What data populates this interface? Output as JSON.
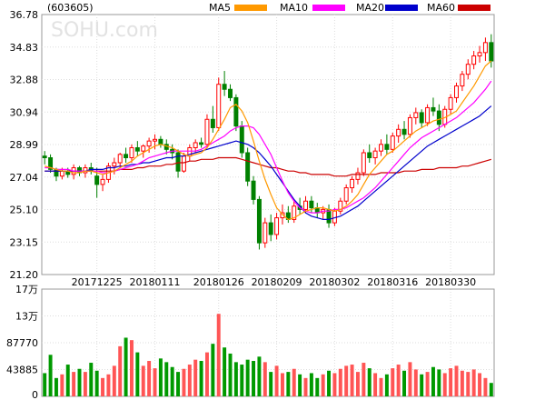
{
  "header": {
    "stock_code": "(603605)",
    "watermark": "SOHU.com",
    "legend": [
      {
        "label": "MA5",
        "color": "#FF9900"
      },
      {
        "label": "MA10",
        "color": "#FF00FF"
      },
      {
        "label": "MA20",
        "color": "#0000CC"
      },
      {
        "label": "MA60",
        "color": "#CC0000"
      }
    ]
  },
  "chart_data": [
    {
      "type": "candlestick",
      "y_ticks": [
        "36.78",
        "34.83",
        "32.88",
        "30.94",
        "28.99",
        "27.04",
        "25.10",
        "23.15",
        "21.20"
      ],
      "ylim": [
        21.2,
        36.78
      ],
      "x_tick_labels": [
        "20171225",
        "20180111",
        "20180126",
        "20180209",
        "20180302",
        "20180316",
        "20180330"
      ],
      "x_tick_index": [
        9,
        19,
        30,
        40,
        50,
        60,
        70
      ],
      "up_color": "#FF0000",
      "down_color": "#008000",
      "candles": [
        [
          28.3,
          28.6,
          27.8,
          28.2
        ],
        [
          28.2,
          28.4,
          27.3,
          27.5
        ],
        [
          27.5,
          27.6,
          26.8,
          27.1
        ],
        [
          27.1,
          27.6,
          26.9,
          27.4
        ],
        [
          27.4,
          27.6,
          27.0,
          27.2
        ],
        [
          27.2,
          27.8,
          26.9,
          27.6
        ],
        [
          27.6,
          27.7,
          27.1,
          27.3
        ],
        [
          27.3,
          27.8,
          27.0,
          27.6
        ],
        [
          27.6,
          27.9,
          27.2,
          27.4
        ],
        [
          27.1,
          27.6,
          25.8,
          26.6
        ],
        [
          26.6,
          27.2,
          26.2,
          26.9
        ],
        [
          26.9,
          27.9,
          26.7,
          27.7
        ],
        [
          27.7,
          28.2,
          27.2,
          27.9
        ],
        [
          27.9,
          28.5,
          27.6,
          28.4
        ],
        [
          28.4,
          28.8,
          27.9,
          28.2
        ],
        [
          28.2,
          29.0,
          27.9,
          28.8
        ],
        [
          28.8,
          29.2,
          28.3,
          28.6
        ],
        [
          28.6,
          29.0,
          28.2,
          28.9
        ],
        [
          28.9,
          29.4,
          28.5,
          29.2
        ],
        [
          29.2,
          29.6,
          28.7,
          29.3
        ],
        [
          29.3,
          29.5,
          28.8,
          29.0
        ],
        [
          29.0,
          29.3,
          28.4,
          28.7
        ],
        [
          28.7,
          29.0,
          28.1,
          28.5
        ],
        [
          28.5,
          28.7,
          27.0,
          27.4
        ],
        [
          27.4,
          28.5,
          27.3,
          28.3
        ],
        [
          28.3,
          29.0,
          28.0,
          28.8
        ],
        [
          28.8,
          29.3,
          28.5,
          29.1
        ],
        [
          29.1,
          29.4,
          28.8,
          29.0
        ],
        [
          29.0,
          30.8,
          28.8,
          30.5
        ],
        [
          30.5,
          31.3,
          29.7,
          30.0
        ],
        [
          30.0,
          33.0,
          29.8,
          32.6
        ],
        [
          32.6,
          33.4,
          31.9,
          32.3
        ],
        [
          32.3,
          32.6,
          31.6,
          31.8
        ],
        [
          31.8,
          32.0,
          29.8,
          30.1
        ],
        [
          30.1,
          30.4,
          28.2,
          28.5
        ],
        [
          28.5,
          28.8,
          26.5,
          26.8
        ],
        [
          26.8,
          27.1,
          25.4,
          25.7
        ],
        [
          25.7,
          25.9,
          22.7,
          23.1
        ],
        [
          23.1,
          24.6,
          22.8,
          24.3
        ],
        [
          24.3,
          24.8,
          23.2,
          23.6
        ],
        [
          23.6,
          24.9,
          23.3,
          24.6
        ],
        [
          24.6,
          25.4,
          24.2,
          24.9
        ],
        [
          24.9,
          25.3,
          24.3,
          24.5
        ],
        [
          24.5,
          25.6,
          24.3,
          25.3
        ],
        [
          25.3,
          25.8,
          24.8,
          25.1
        ],
        [
          25.1,
          25.9,
          24.9,
          25.6
        ],
        [
          25.6,
          25.9,
          24.9,
          25.2
        ],
        [
          25.2,
          25.5,
          24.6,
          24.9
        ],
        [
          24.9,
          25.3,
          24.5,
          25.1
        ],
        [
          25.1,
          25.4,
          24.0,
          24.3
        ],
        [
          24.3,
          25.2,
          24.1,
          25.0
        ],
        [
          25.0,
          25.8,
          24.8,
          25.6
        ],
        [
          25.6,
          26.6,
          25.4,
          26.4
        ],
        [
          26.4,
          27.1,
          26.1,
          26.9
        ],
        [
          26.9,
          27.6,
          26.6,
          27.3
        ],
        [
          27.3,
          28.7,
          27.1,
          28.5
        ],
        [
          28.5,
          29.0,
          27.9,
          28.2
        ],
        [
          28.2,
          28.8,
          27.8,
          28.6
        ],
        [
          28.6,
          29.3,
          28.3,
          29.0
        ],
        [
          29.0,
          29.6,
          28.4,
          28.7
        ],
        [
          28.7,
          29.7,
          28.5,
          29.5
        ],
        [
          29.5,
          30.2,
          29.1,
          29.9
        ],
        [
          29.9,
          30.4,
          29.3,
          29.6
        ],
        [
          29.6,
          30.8,
          29.4,
          30.6
        ],
        [
          30.6,
          31.2,
          30.2,
          30.9
        ],
        [
          30.9,
          31.1,
          30.0,
          30.3
        ],
        [
          30.3,
          31.4,
          30.1,
          31.2
        ],
        [
          31.2,
          31.8,
          30.7,
          31.0
        ],
        [
          31.0,
          31.4,
          29.8,
          30.2
        ],
        [
          30.2,
          31.3,
          30.0,
          31.1
        ],
        [
          31.1,
          32.0,
          30.8,
          31.8
        ],
        [
          31.8,
          32.7,
          31.5,
          32.5
        ],
        [
          32.5,
          33.4,
          32.2,
          33.2
        ],
        [
          33.2,
          34.1,
          32.9,
          33.8
        ],
        [
          33.8,
          34.6,
          33.5,
          34.3
        ],
        [
          34.3,
          34.9,
          33.9,
          34.5
        ],
        [
          34.5,
          35.4,
          34.0,
          35.1
        ],
        [
          35.1,
          35.6,
          33.6,
          34.0
        ]
      ],
      "ma5": [
        27.7,
        27.6,
        27.5,
        27.4,
        27.4,
        27.3,
        27.3,
        27.4,
        27.4,
        27.3,
        27.2,
        27.3,
        27.4,
        27.6,
        27.8,
        28.0,
        28.3,
        28.5,
        28.7,
        28.9,
        29.0,
        28.9,
        28.8,
        28.6,
        28.4,
        28.3,
        28.4,
        28.5,
        28.8,
        29.3,
        29.9,
        30.5,
        31.2,
        31.4,
        31.0,
        30.3,
        29.2,
        28.0,
        26.9,
        26.0,
        25.2,
        24.8,
        24.5,
        24.6,
        24.8,
        25.0,
        25.1,
        25.2,
        25.2,
        25.1,
        25.0,
        25.1,
        25.3,
        25.6,
        26.0,
        26.6,
        27.2,
        27.6,
        28.0,
        28.4,
        28.6,
        28.9,
        29.2,
        29.5,
        29.8,
        30.0,
        30.2,
        30.4,
        30.5,
        30.6,
        30.8,
        31.0,
        31.5,
        32.0,
        32.5,
        33.1,
        33.7,
        34.0
      ],
      "ma10": [
        27.6,
        27.6,
        27.5,
        27.5,
        27.5,
        27.4,
        27.4,
        27.4,
        27.4,
        27.4,
        27.3,
        27.3,
        27.4,
        27.5,
        27.6,
        27.7,
        27.8,
        28.0,
        28.2,
        28.3,
        28.4,
        28.5,
        28.6,
        28.6,
        28.6,
        28.6,
        28.6,
        28.7,
        28.9,
        29.1,
        29.3,
        29.5,
        29.8,
        30.0,
        30.1,
        30.1,
        30.0,
        29.6,
        29.0,
        28.4,
        27.6,
        26.8,
        26.1,
        25.6,
        25.2,
        25.0,
        24.9,
        24.9,
        25.0,
        25.0,
        25.1,
        25.1,
        25.2,
        25.4,
        25.6,
        25.8,
        26.1,
        26.4,
        26.8,
        27.2,
        27.6,
        28.0,
        28.4,
        28.8,
        29.1,
        29.4,
        29.6,
        29.8,
        30.0,
        30.2,
        30.4,
        30.6,
        30.9,
        31.2,
        31.5,
        31.9,
        32.3,
        32.8
      ],
      "ma20": [
        27.4,
        27.4,
        27.4,
        27.4,
        27.4,
        27.4,
        27.4,
        27.4,
        27.5,
        27.5,
        27.5,
        27.6,
        27.6,
        27.7,
        27.7,
        27.8,
        27.8,
        27.9,
        27.9,
        28.0,
        28.1,
        28.2,
        28.2,
        28.3,
        28.3,
        28.4,
        28.5,
        28.6,
        28.7,
        28.8,
        28.9,
        29.0,
        29.1,
        29.2,
        29.1,
        29.0,
        28.8,
        28.5,
        28.1,
        27.7,
        27.2,
        26.7,
        26.2,
        25.7,
        25.3,
        24.9,
        24.7,
        24.6,
        24.5,
        24.5,
        24.6,
        24.7,
        24.9,
        25.1,
        25.3,
        25.6,
        25.9,
        26.2,
        26.5,
        26.8,
        27.1,
        27.4,
        27.7,
        28.0,
        28.3,
        28.6,
        28.9,
        29.1,
        29.3,
        29.5,
        29.7,
        29.9,
        30.1,
        30.3,
        30.5,
        30.7,
        31.0,
        31.3
      ],
      "ma60": [
        27.4,
        27.4,
        27.4,
        27.4,
        27.4,
        27.4,
        27.4,
        27.4,
        27.4,
        27.4,
        27.4,
        27.4,
        27.4,
        27.5,
        27.5,
        27.5,
        27.6,
        27.6,
        27.7,
        27.7,
        27.7,
        27.8,
        27.8,
        27.9,
        27.9,
        28.0,
        28.0,
        28.1,
        28.1,
        28.1,
        28.2,
        28.2,
        28.2,
        28.2,
        28.1,
        28.0,
        27.9,
        27.8,
        27.7,
        27.6,
        27.6,
        27.5,
        27.4,
        27.4,
        27.3,
        27.3,
        27.2,
        27.2,
        27.2,
        27.2,
        27.1,
        27.1,
        27.1,
        27.2,
        27.2,
        27.2,
        27.2,
        27.2,
        27.3,
        27.3,
        27.3,
        27.3,
        27.4,
        27.4,
        27.4,
        27.5,
        27.5,
        27.5,
        27.6,
        27.6,
        27.6,
        27.6,
        27.7,
        27.7,
        27.8,
        27.9,
        28.0,
        28.1
      ]
    },
    {
      "type": "bar",
      "y_ticks": [
        "17万",
        "13万",
        "87770",
        "43885",
        "0"
      ],
      "ylim": [
        0,
        175540
      ],
      "volumes": [
        38000,
        68000,
        30000,
        36000,
        52000,
        40000,
        45000,
        40000,
        55000,
        42000,
        30000,
        36000,
        50000,
        82000,
        96000,
        92000,
        72000,
        50000,
        58000,
        46000,
        62000,
        56000,
        48000,
        40000,
        45000,
        52000,
        60000,
        58000,
        72000,
        86000,
        135000,
        80000,
        70000,
        56000,
        52000,
        60000,
        58000,
        65000,
        56000,
        40000,
        50000,
        38000,
        40000,
        45000,
        36000,
        30000,
        38000,
        30000,
        36000,
        42000,
        38000,
        45000,
        50000,
        52000,
        40000,
        55000,
        46000,
        38000,
        30000,
        36000,
        46000,
        52000,
        42000,
        56000,
        44000,
        36000,
        40000,
        48000,
        44000,
        38000,
        46000,
        50000,
        42000,
        40000,
        44000,
        38000,
        30000,
        22000
      ]
    }
  ]
}
